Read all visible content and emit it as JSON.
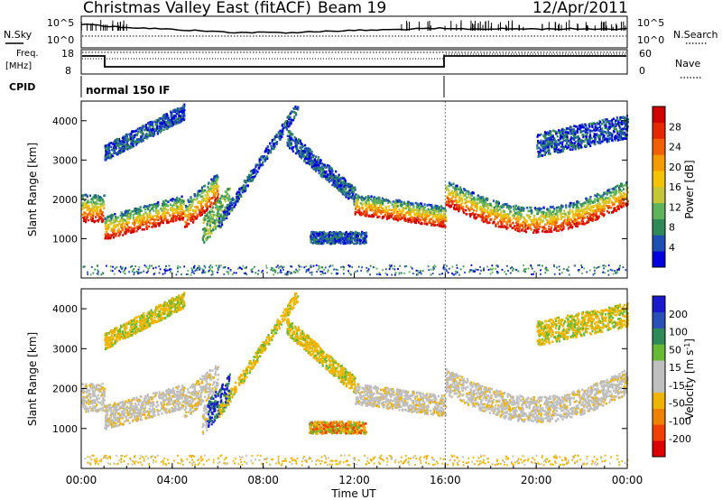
{
  "header": {
    "title": "Christmas Valley East (fitACF)",
    "beam": "Beam 19",
    "date": "12/Apr/2011"
  },
  "top_panels": {
    "nsky_label": "N.Sky",
    "nsky_ticks": [
      "10^5",
      "10^0"
    ],
    "nsearch_label": "N.Search",
    "nsearch_ticks": [
      "10^5",
      "10^0"
    ],
    "freq_label_1": "Freq.",
    "freq_label_2": "[MHz]",
    "freq_ticks": [
      "18",
      "8"
    ],
    "nave_label": "Nave",
    "nave_ticks": [
      "60",
      "0"
    ],
    "cpid_label": "CPID",
    "cpid_value": "normal 150 IF"
  },
  "colors": {
    "power_scale": [
      "#0000dd",
      "#1e50b4",
      "#2e8b57",
      "#5fb35a",
      "#c6c63a",
      "#f5c400",
      "#f59a00",
      "#f06000",
      "#e62800",
      "#d00000"
    ],
    "velocity_scale": [
      "#1a1acc",
      "#2850b8",
      "#2e8b57",
      "#66bb33",
      "#bfbfbf",
      "#bfbfbf",
      "#f0b400",
      "#f08000",
      "#f04000",
      "#dd0000"
    ]
  },
  "chart_data": [
    {
      "type": "heatmap",
      "ylabel": "Slant Range [km]",
      "y_ticks": [
        1000,
        2000,
        3000,
        4000
      ],
      "ylim": [
        0,
        4500
      ],
      "x_ticks": [
        "00:00",
        "04:00",
        "08:00",
        "12:00",
        "16:00",
        "20:00",
        "00:00"
      ],
      "xlim_hours": [
        0,
        24
      ],
      "colorbar_label": "Power [dB]",
      "colorbar_ticks": [
        "4",
        "8",
        "12",
        "16",
        "20",
        "24",
        "28"
      ],
      "colorbar_range": [
        0,
        30
      ]
    },
    {
      "type": "heatmap",
      "ylabel": "Slant Range [km]",
      "y_ticks": [
        1000,
        2000,
        3000,
        4000
      ],
      "ylim": [
        0,
        4500
      ],
      "x_ticks": [
        "00:00",
        "04:00",
        "08:00",
        "12:00",
        "16:00",
        "20:00",
        "00:00"
      ],
      "xlabel": "Time UT",
      "colorbar_label": "Velocity [m s-1]",
      "colorbar_ticks": [
        "200",
        "100",
        "50",
        "15",
        "-15",
        "-50",
        "-100",
        "-200"
      ]
    }
  ]
}
